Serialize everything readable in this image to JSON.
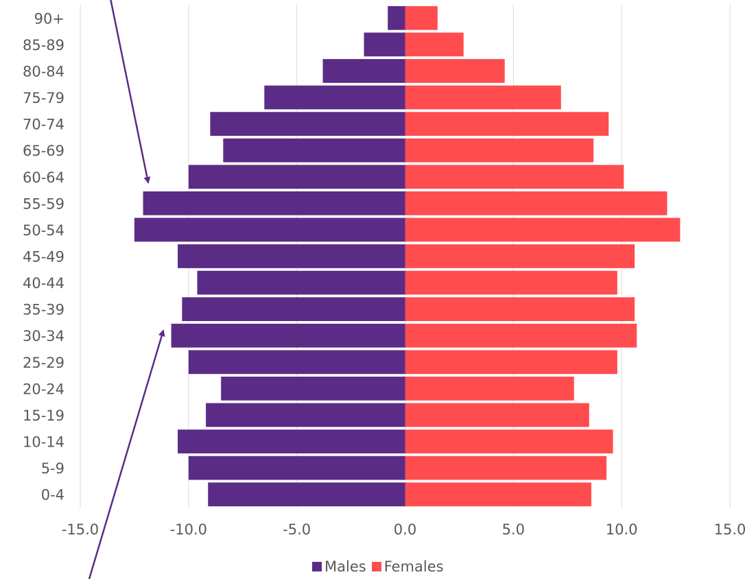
{
  "chart_data": {
    "type": "bar",
    "orientation": "horizontal",
    "subtype": "population-pyramid",
    "categories": [
      "0-4",
      "5-9",
      "10-14",
      "15-19",
      "20-24",
      "25-29",
      "30-34",
      "35-39",
      "40-44",
      "45-49",
      "50-54",
      "55-59",
      "60-64",
      "65-69",
      "70-74",
      "75-79",
      "80-84",
      "85-89",
      "90+"
    ],
    "series": [
      {
        "name": "Males",
        "color": "#5b2c86",
        "values": [
          -9.1,
          -10.0,
          -10.5,
          -9.2,
          -8.5,
          -10.0,
          -10.8,
          -10.3,
          -9.6,
          -10.5,
          -12.5,
          -12.1,
          -10.0,
          -8.4,
          -9.0,
          -6.5,
          -3.8,
          -1.9,
          -0.8
        ]
      },
      {
        "name": "Females",
        "color": "#ff4d4f",
        "values": [
          8.6,
          9.3,
          9.6,
          8.5,
          7.8,
          9.8,
          10.7,
          10.6,
          9.8,
          10.6,
          12.7,
          12.1,
          10.1,
          8.7,
          9.4,
          7.2,
          4.6,
          2.7,
          1.5
        ]
      }
    ],
    "xlim": [
      -15,
      15
    ],
    "xticks": [
      "-15.0",
      "-10.0",
      "-5.0",
      "0.0",
      "5.0",
      "10.0",
      "15.0"
    ],
    "grid": "vertical",
    "legend_position": "bottom",
    "annotations": [
      "arrow",
      "arrow"
    ]
  },
  "legend": {
    "males": "Males",
    "females": "Females"
  }
}
